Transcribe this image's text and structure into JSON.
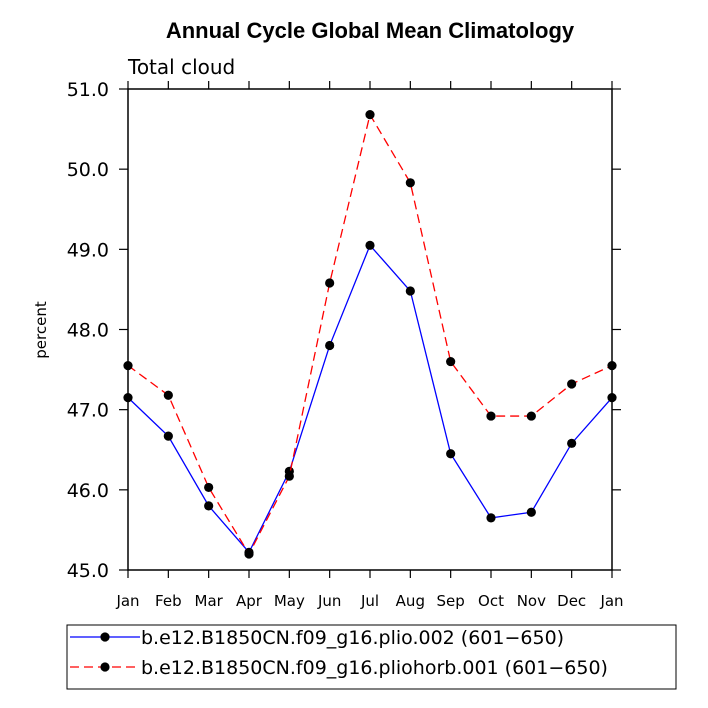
{
  "chart_data": {
    "type": "line",
    "title": "Annual Cycle Global Mean Climatology",
    "subtitle": "Total cloud",
    "xlabel": "",
    "ylabel": "percent",
    "categories": [
      "Jan",
      "Feb",
      "Mar",
      "Apr",
      "May",
      "Jun",
      "Jul",
      "Aug",
      "Sep",
      "Oct",
      "Nov",
      "Dec",
      "Jan"
    ],
    "ylim": [
      45.0,
      51.0
    ],
    "yticks": [
      "45.0",
      "46.0",
      "47.0",
      "48.0",
      "49.0",
      "50.0",
      "51.0"
    ],
    "grid": false,
    "legend_position": "bottom",
    "series": [
      {
        "name": "b.e12.B1850CN.f09_g16.plio.002 (601−650)",
        "color": "#0000ff",
        "dash": "solid",
        "values": [
          47.15,
          46.67,
          45.8,
          45.22,
          46.23,
          47.8,
          49.05,
          48.48,
          46.45,
          45.65,
          45.72,
          46.58,
          47.15
        ]
      },
      {
        "name": "b.e12.B1850CN.f09_g16.pliohorb.001 (601−650)",
        "color": "#ff0000",
        "dash": "dashed",
        "values": [
          47.55,
          47.18,
          46.03,
          45.2,
          46.17,
          48.58,
          50.68,
          49.83,
          47.6,
          46.92,
          46.92,
          47.32,
          47.55
        ]
      }
    ]
  }
}
